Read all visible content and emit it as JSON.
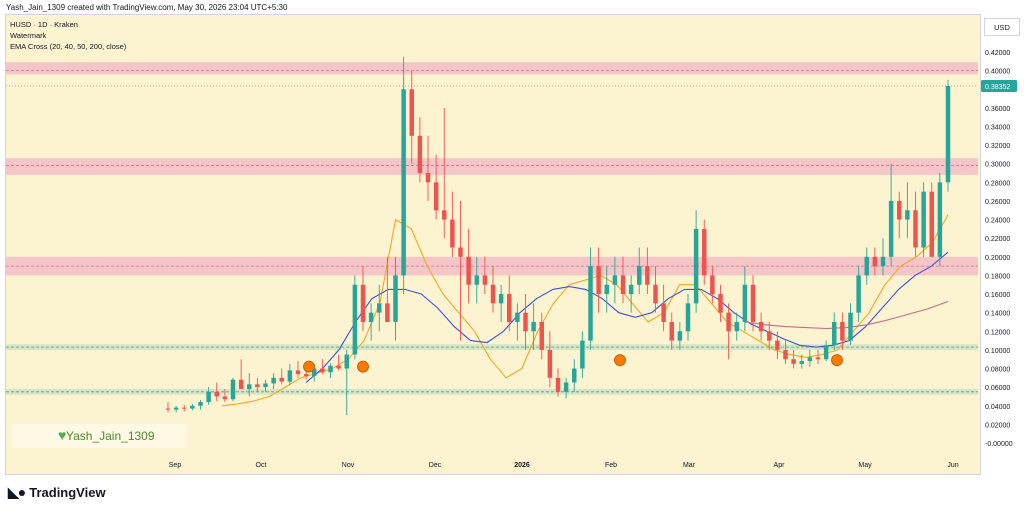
{
  "header": {
    "creator_line": "Yash_Jain_1309 created with TradingView.com, May 30, 2026 23:04 UTC+5:30"
  },
  "legend": {
    "symbol_line": "HUSD · 1D · Kraken",
    "watermark_line": "Watermark",
    "ema_line": "EMA Cross (20, 40, 50, 200, close)"
  },
  "currency": "USD",
  "watermark_label": "Yash_Jain_1309",
  "footer_brand": "TradingView",
  "colors": {
    "background": "#fcf3d0",
    "up": "#26a69a",
    "down": "#ef5350",
    "ema20": "#f5a623",
    "ema50": "#3f51d6",
    "ema200": "#c56b8a",
    "resistance_zone": "#f2b7c4",
    "support_zone": "#cfe3c6",
    "marker": "#f57c00",
    "price_label": "#26a69a"
  },
  "chart_data": {
    "type": "candlestick",
    "y_range": [
      0.0,
      0.43
    ],
    "y_ticks": [
      "0.42000",
      "0.40000",
      "0.38000",
      "0.36000",
      "0.34000",
      "0.32000",
      "0.30000",
      "0.28000",
      "0.26000",
      "0.24000",
      "0.22000",
      "0.20000",
      "0.18000",
      "0.16000",
      "0.14000",
      "0.12000",
      "0.10000",
      "0.08000",
      "0.06000",
      "0.04000",
      "0.02000",
      "-0.00000"
    ],
    "x_labels": [
      "Sep",
      "Oct",
      "Nov",
      "Dec",
      "2026",
      "Feb",
      "Mar",
      "Apr",
      "May",
      "Jun"
    ],
    "last_price": "0.38352",
    "zones": [
      {
        "kind": "resistance",
        "low": 0.396,
        "high": 0.409,
        "line": 0.4
      },
      {
        "kind": "resistance",
        "low": 0.288,
        "high": 0.306,
        "line": 0.298
      },
      {
        "kind": "resistance",
        "low": 0.18,
        "high": 0.2,
        "line": 0.19
      },
      {
        "kind": "support",
        "low": 0.1,
        "high": 0.106,
        "line": 0.103
      },
      {
        "kind": "support",
        "low": 0.052,
        "high": 0.058,
        "line": 0.055
      }
    ],
    "markers": [
      {
        "date": "Oct 14",
        "value": 0.082
      },
      {
        "date": "Nov 5",
        "value": 0.082
      },
      {
        "date": "Feb 5",
        "value": 0.089
      },
      {
        "date": "Apr 23",
        "value": 0.089
      }
    ],
    "candles": [
      {
        "o": 0.037,
        "h": 0.044,
        "l": 0.033,
        "c": 0.036
      },
      {
        "o": 0.036,
        "h": 0.04,
        "l": 0.033,
        "c": 0.038
      },
      {
        "o": 0.038,
        "h": 0.041,
        "l": 0.034,
        "c": 0.037
      },
      {
        "o": 0.037,
        "h": 0.042,
        "l": 0.035,
        "c": 0.04
      },
      {
        "o": 0.04,
        "h": 0.046,
        "l": 0.036,
        "c": 0.044
      },
      {
        "o": 0.044,
        "h": 0.06,
        "l": 0.041,
        "c": 0.055
      },
      {
        "o": 0.055,
        "h": 0.065,
        "l": 0.045,
        "c": 0.05
      },
      {
        "o": 0.05,
        "h": 0.058,
        "l": 0.044,
        "c": 0.047
      },
      {
        "o": 0.047,
        "h": 0.07,
        "l": 0.045,
        "c": 0.068
      },
      {
        "o": 0.068,
        "h": 0.09,
        "l": 0.06,
        "c": 0.058
      },
      {
        "o": 0.058,
        "h": 0.075,
        "l": 0.05,
        "c": 0.063
      },
      {
        "o": 0.063,
        "h": 0.07,
        "l": 0.055,
        "c": 0.06
      },
      {
        "o": 0.06,
        "h": 0.068,
        "l": 0.055,
        "c": 0.064
      },
      {
        "o": 0.064,
        "h": 0.075,
        "l": 0.058,
        "c": 0.07
      },
      {
        "o": 0.07,
        "h": 0.08,
        "l": 0.063,
        "c": 0.066
      },
      {
        "o": 0.066,
        "h": 0.085,
        "l": 0.062,
        "c": 0.078
      },
      {
        "o": 0.078,
        "h": 0.088,
        "l": 0.07,
        "c": 0.074
      },
      {
        "o": 0.074,
        "h": 0.082,
        "l": 0.068,
        "c": 0.072
      },
      {
        "o": 0.072,
        "h": 0.085,
        "l": 0.066,
        "c": 0.08
      },
      {
        "o": 0.08,
        "h": 0.09,
        "l": 0.074,
        "c": 0.076
      },
      {
        "o": 0.076,
        "h": 0.086,
        "l": 0.07,
        "c": 0.083
      },
      {
        "o": 0.083,
        "h": 0.095,
        "l": 0.078,
        "c": 0.08
      },
      {
        "o": 0.08,
        "h": 0.1,
        "l": 0.03,
        "c": 0.095
      },
      {
        "o": 0.095,
        "h": 0.18,
        "l": 0.09,
        "c": 0.17
      },
      {
        "o": 0.17,
        "h": 0.19,
        "l": 0.12,
        "c": 0.13
      },
      {
        "o": 0.13,
        "h": 0.15,
        "l": 0.11,
        "c": 0.14
      },
      {
        "o": 0.14,
        "h": 0.17,
        "l": 0.12,
        "c": 0.15
      },
      {
        "o": 0.15,
        "h": 0.2,
        "l": 0.13,
        "c": 0.13
      },
      {
        "o": 0.13,
        "h": 0.2,
        "l": 0.11,
        "c": 0.18
      },
      {
        "o": 0.18,
        "h": 0.415,
        "l": 0.16,
        "c": 0.38
      },
      {
        "o": 0.38,
        "h": 0.4,
        "l": 0.3,
        "c": 0.33
      },
      {
        "o": 0.33,
        "h": 0.35,
        "l": 0.28,
        "c": 0.29
      },
      {
        "o": 0.29,
        "h": 0.33,
        "l": 0.26,
        "c": 0.28
      },
      {
        "o": 0.28,
        "h": 0.31,
        "l": 0.24,
        "c": 0.25
      },
      {
        "o": 0.25,
        "h": 0.36,
        "l": 0.22,
        "c": 0.24
      },
      {
        "o": 0.24,
        "h": 0.27,
        "l": 0.2,
        "c": 0.21
      },
      {
        "o": 0.21,
        "h": 0.26,
        "l": 0.11,
        "c": 0.2
      },
      {
        "o": 0.2,
        "h": 0.23,
        "l": 0.15,
        "c": 0.17
      },
      {
        "o": 0.17,
        "h": 0.2,
        "l": 0.15,
        "c": 0.18
      },
      {
        "o": 0.18,
        "h": 0.2,
        "l": 0.16,
        "c": 0.17
      },
      {
        "o": 0.17,
        "h": 0.19,
        "l": 0.14,
        "c": 0.15
      },
      {
        "o": 0.15,
        "h": 0.17,
        "l": 0.13,
        "c": 0.16
      },
      {
        "o": 0.16,
        "h": 0.18,
        "l": 0.12,
        "c": 0.13
      },
      {
        "o": 0.13,
        "h": 0.15,
        "l": 0.11,
        "c": 0.14
      },
      {
        "o": 0.14,
        "h": 0.16,
        "l": 0.1,
        "c": 0.12
      },
      {
        "o": 0.12,
        "h": 0.15,
        "l": 0.1,
        "c": 0.13
      },
      {
        "o": 0.13,
        "h": 0.14,
        "l": 0.09,
        "c": 0.1
      },
      {
        "o": 0.1,
        "h": 0.12,
        "l": 0.06,
        "c": 0.07
      },
      {
        "o": 0.07,
        "h": 0.08,
        "l": 0.05,
        "c": 0.055
      },
      {
        "o": 0.055,
        "h": 0.07,
        "l": 0.048,
        "c": 0.065
      },
      {
        "o": 0.065,
        "h": 0.09,
        "l": 0.055,
        "c": 0.08
      },
      {
        "o": 0.08,
        "h": 0.12,
        "l": 0.07,
        "c": 0.11
      },
      {
        "o": 0.11,
        "h": 0.21,
        "l": 0.1,
        "c": 0.19
      },
      {
        "o": 0.19,
        "h": 0.21,
        "l": 0.14,
        "c": 0.16
      },
      {
        "o": 0.16,
        "h": 0.19,
        "l": 0.14,
        "c": 0.17
      },
      {
        "o": 0.17,
        "h": 0.2,
        "l": 0.15,
        "c": 0.18
      },
      {
        "o": 0.18,
        "h": 0.2,
        "l": 0.15,
        "c": 0.16
      },
      {
        "o": 0.16,
        "h": 0.18,
        "l": 0.14,
        "c": 0.17
      },
      {
        "o": 0.17,
        "h": 0.21,
        "l": 0.16,
        "c": 0.19
      },
      {
        "o": 0.19,
        "h": 0.21,
        "l": 0.16,
        "c": 0.17
      },
      {
        "o": 0.17,
        "h": 0.19,
        "l": 0.14,
        "c": 0.15
      },
      {
        "o": 0.15,
        "h": 0.17,
        "l": 0.12,
        "c": 0.13
      },
      {
        "o": 0.13,
        "h": 0.14,
        "l": 0.1,
        "c": 0.11
      },
      {
        "o": 0.11,
        "h": 0.13,
        "l": 0.1,
        "c": 0.12
      },
      {
        "o": 0.12,
        "h": 0.16,
        "l": 0.11,
        "c": 0.15
      },
      {
        "o": 0.15,
        "h": 0.25,
        "l": 0.14,
        "c": 0.23
      },
      {
        "o": 0.23,
        "h": 0.24,
        "l": 0.17,
        "c": 0.18
      },
      {
        "o": 0.18,
        "h": 0.19,
        "l": 0.15,
        "c": 0.16
      },
      {
        "o": 0.16,
        "h": 0.17,
        "l": 0.13,
        "c": 0.14
      },
      {
        "o": 0.14,
        "h": 0.15,
        "l": 0.09,
        "c": 0.12
      },
      {
        "o": 0.12,
        "h": 0.14,
        "l": 0.11,
        "c": 0.13
      },
      {
        "o": 0.13,
        "h": 0.19,
        "l": 0.12,
        "c": 0.17
      },
      {
        "o": 0.17,
        "h": 0.18,
        "l": 0.12,
        "c": 0.13
      },
      {
        "o": 0.13,
        "h": 0.14,
        "l": 0.11,
        "c": 0.12
      },
      {
        "o": 0.12,
        "h": 0.13,
        "l": 0.1,
        "c": 0.11
      },
      {
        "o": 0.11,
        "h": 0.12,
        "l": 0.09,
        "c": 0.1
      },
      {
        "o": 0.1,
        "h": 0.11,
        "l": 0.085,
        "c": 0.09
      },
      {
        "o": 0.09,
        "h": 0.1,
        "l": 0.08,
        "c": 0.085
      },
      {
        "o": 0.085,
        "h": 0.095,
        "l": 0.08,
        "c": 0.088
      },
      {
        "o": 0.088,
        "h": 0.1,
        "l": 0.082,
        "c": 0.092
      },
      {
        "o": 0.092,
        "h": 0.1,
        "l": 0.085,
        "c": 0.09
      },
      {
        "o": 0.09,
        "h": 0.11,
        "l": 0.088,
        "c": 0.105
      },
      {
        "o": 0.105,
        "h": 0.14,
        "l": 0.1,
        "c": 0.13
      },
      {
        "o": 0.13,
        "h": 0.14,
        "l": 0.1,
        "c": 0.11
      },
      {
        "o": 0.11,
        "h": 0.15,
        "l": 0.105,
        "c": 0.14
      },
      {
        "o": 0.14,
        "h": 0.19,
        "l": 0.13,
        "c": 0.18
      },
      {
        "o": 0.18,
        "h": 0.21,
        "l": 0.17,
        "c": 0.2
      },
      {
        "o": 0.2,
        "h": 0.21,
        "l": 0.18,
        "c": 0.19
      },
      {
        "o": 0.19,
        "h": 0.22,
        "l": 0.18,
        "c": 0.2
      },
      {
        "o": 0.2,
        "h": 0.3,
        "l": 0.19,
        "c": 0.26
      },
      {
        "o": 0.26,
        "h": 0.27,
        "l": 0.22,
        "c": 0.24
      },
      {
        "o": 0.24,
        "h": 0.28,
        "l": 0.22,
        "c": 0.25
      },
      {
        "o": 0.25,
        "h": 0.27,
        "l": 0.2,
        "c": 0.21
      },
      {
        "o": 0.21,
        "h": 0.28,
        "l": 0.2,
        "c": 0.27
      },
      {
        "o": 0.27,
        "h": 0.28,
        "l": 0.2,
        "c": 0.2
      },
      {
        "o": 0.2,
        "h": 0.29,
        "l": 0.19,
        "c": 0.28
      },
      {
        "o": 0.28,
        "h": 0.39,
        "l": 0.27,
        "c": 0.38352
      }
    ],
    "ema20": [
      0.04,
      0.042,
      0.045,
      0.05,
      0.06,
      0.07,
      0.075,
      0.08,
      0.09,
      0.11,
      0.15,
      0.24,
      0.23,
      0.19,
      0.16,
      0.14,
      0.12,
      0.09,
      0.07,
      0.08,
      0.12,
      0.15,
      0.17,
      0.175,
      0.18,
      0.17,
      0.15,
      0.13,
      0.14,
      0.17,
      0.17,
      0.15,
      0.13,
      0.12,
      0.11,
      0.1,
      0.095,
      0.092,
      0.095,
      0.1,
      0.12,
      0.14,
      0.17,
      0.19,
      0.2,
      0.215,
      0.245
    ],
    "ema50": [
      0.065,
      0.08,
      0.1,
      0.13,
      0.155,
      0.165,
      0.165,
      0.16,
      0.145,
      0.125,
      0.11,
      0.108,
      0.12,
      0.14,
      0.155,
      0.165,
      0.168,
      0.165,
      0.155,
      0.14,
      0.135,
      0.14,
      0.155,
      0.165,
      0.165,
      0.155,
      0.14,
      0.128,
      0.12,
      0.112,
      0.105,
      0.103,
      0.105,
      0.11,
      0.125,
      0.145,
      0.165,
      0.18,
      0.19,
      0.205
    ],
    "ema200": [
      0.13,
      0.127,
      0.125,
      0.124,
      0.123,
      0.124,
      0.127,
      0.132,
      0.138,
      0.144,
      0.152
    ]
  }
}
